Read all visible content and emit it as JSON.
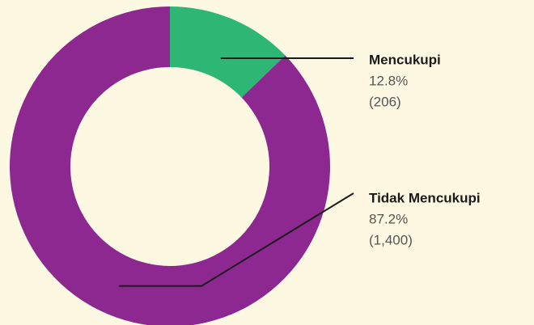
{
  "chart_data": {
    "type": "pie",
    "donut": true,
    "categories": [
      "Mencukupi",
      "Tidak Mencukupi"
    ],
    "values": [
      12.8,
      87.2
    ],
    "value_labels": [
      "12.8%",
      "87.2%"
    ],
    "counts": [
      206,
      1400
    ],
    "count_labels": [
      "(206)",
      "(1,400)"
    ],
    "colors": [
      "#2db674",
      "#8c288f"
    ]
  }
}
